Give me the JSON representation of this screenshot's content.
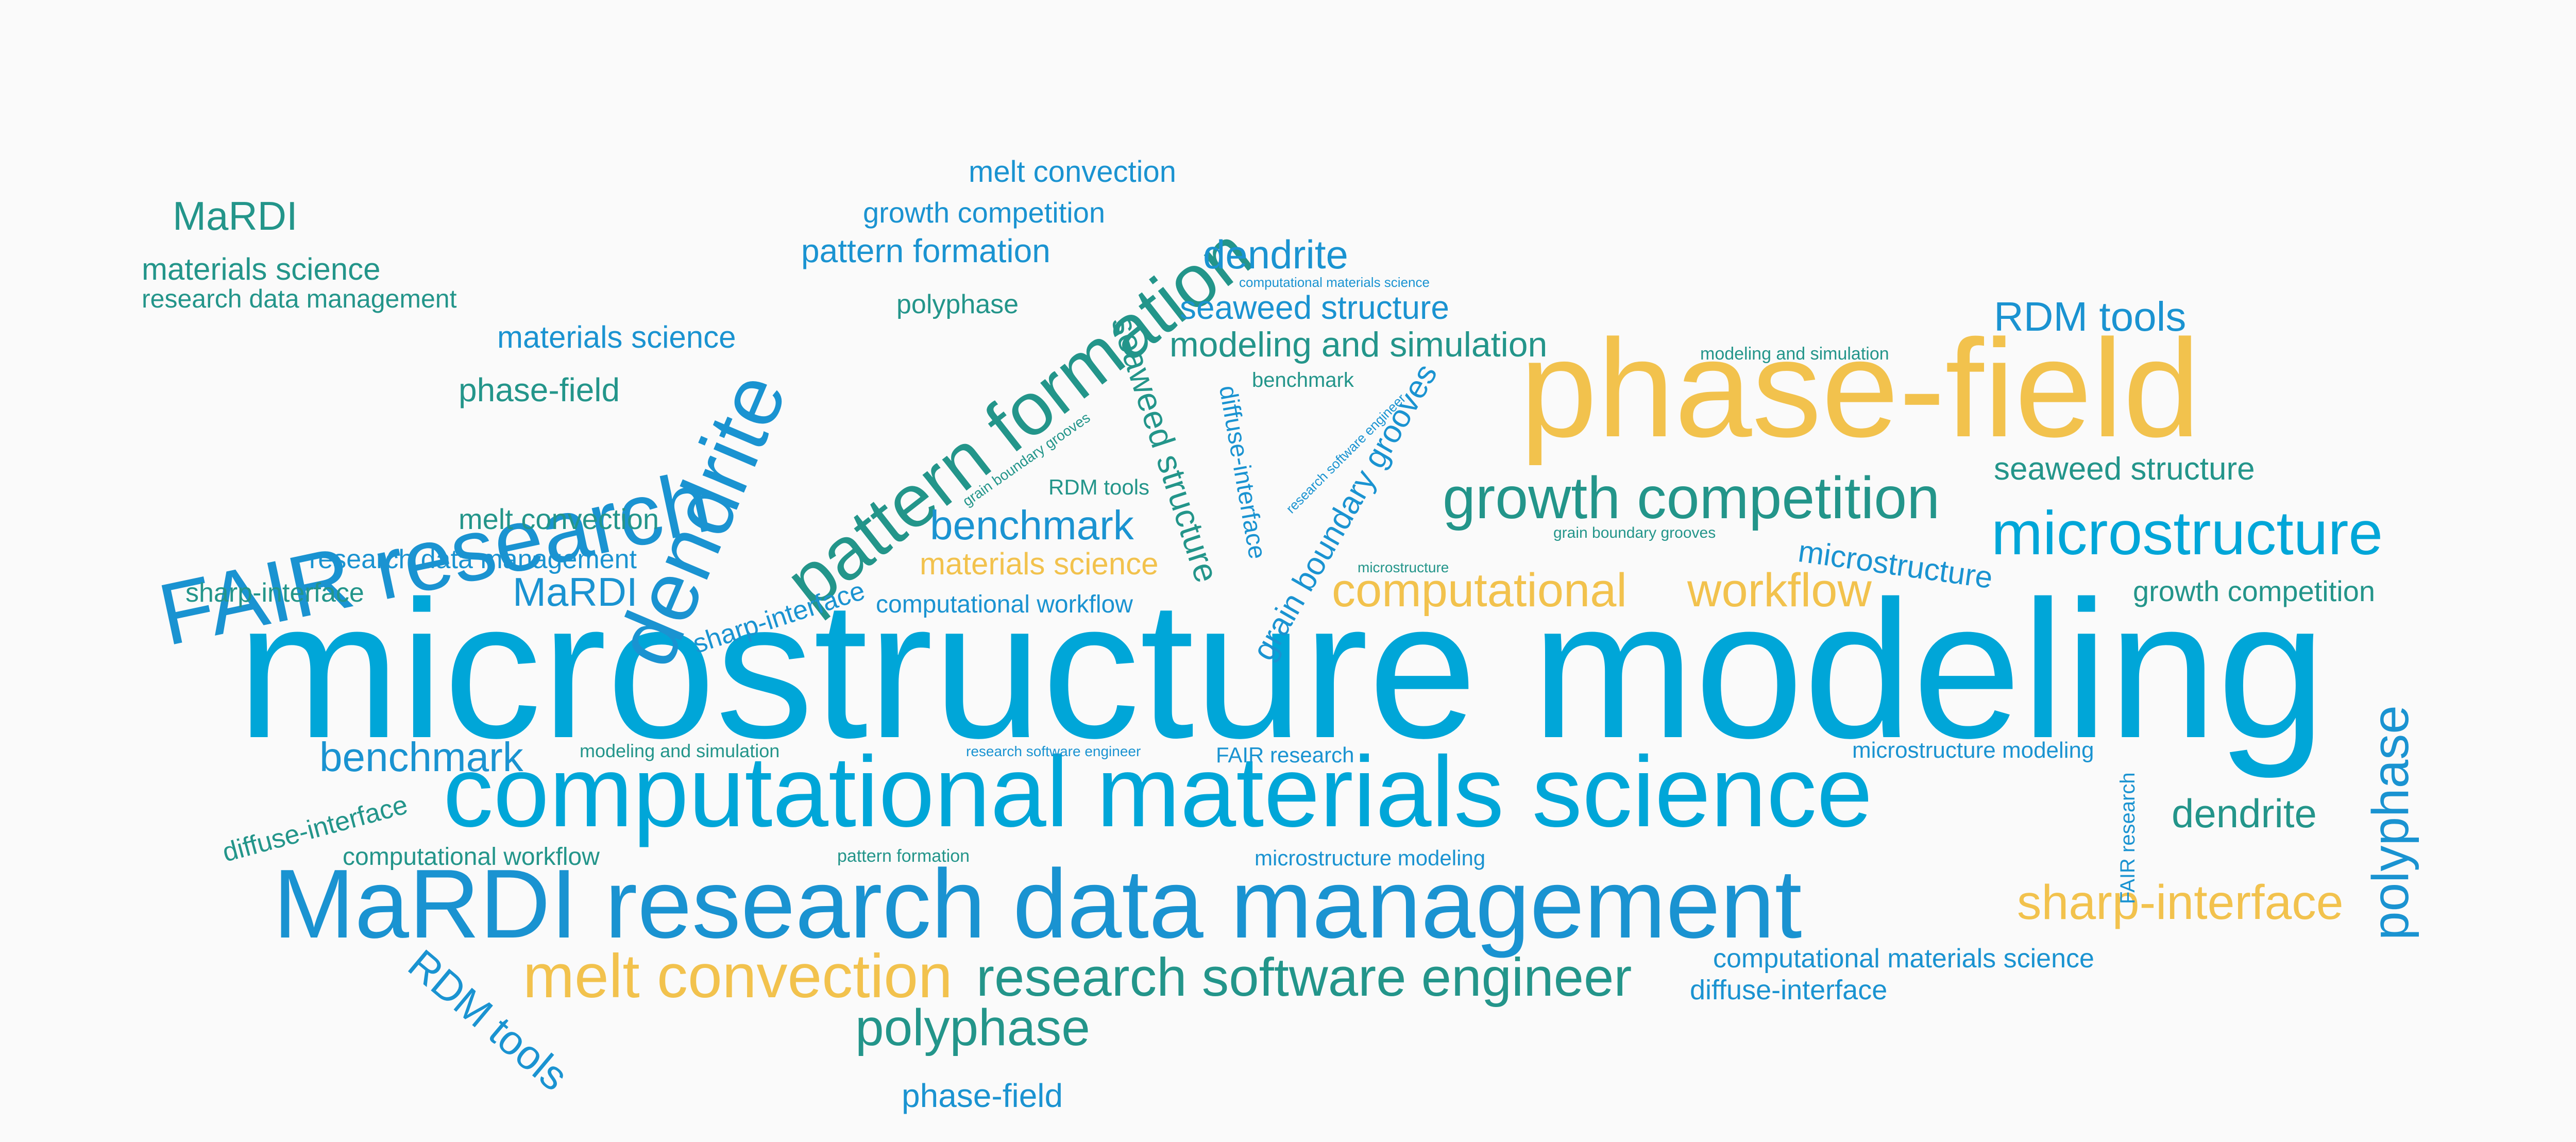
{
  "colors": {
    "blue": "#00a6d8",
    "blue_dark": "#1a93d1",
    "teal": "#23958a",
    "yellow": "#f2c24d",
    "background": "#fafafa"
  },
  "words": [
    "microstructure modeling",
    "computational materials science",
    "MaRDI research data management",
    "phase-field",
    "FAIR research",
    "dendrite",
    "pattern formation",
    "melt convection",
    "research software engineer",
    "growth competition",
    "microstructure",
    "computational",
    "workflow",
    "sharp-interface",
    "polyphase",
    "polyphase",
    "RDM tools",
    "RDM tools",
    "dendrite",
    "dendrite",
    "seaweed structure",
    "seaweed structure",
    "grain boundary grooves",
    "diffuse-interface",
    "modeling and simulation",
    "benchmark",
    "benchmark",
    "MaRDI",
    "MaRDI",
    "phase-field",
    "phase-field",
    "materials science",
    "materials science",
    "materials science",
    "research data management",
    "research data management",
    "melt convection",
    "melt convection",
    "growth competition",
    "growth competition",
    "pattern formation",
    "sharp-interface",
    "sharp-interface",
    "seaweed structure",
    "microstructure",
    "diffuse-interface",
    "diffuse-interface",
    "computational  workflow",
    "computational  workflow",
    "polyphase",
    "FAIR research",
    "FAIR research",
    "microstructure modeling",
    "microstructure modeling",
    "computational materials science",
    "computational materials science",
    "modeling and simulation",
    "modeling and simulation",
    "benchmark",
    "RDM tools",
    "grain boundary grooves",
    "grain boundary grooves",
    "research software engineer",
    "research software engineer",
    "microstructure",
    "pattern formation"
  ]
}
